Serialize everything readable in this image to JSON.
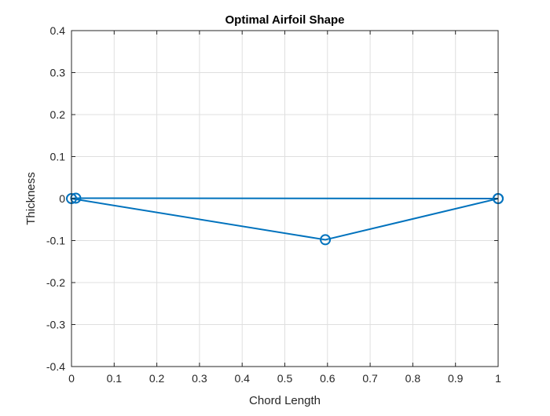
{
  "chart_data": {
    "type": "line",
    "title": "Optimal Airfoil Shape",
    "xlabel": "Chord Length",
    "ylabel": "Thickness",
    "xlim": [
      0,
      1
    ],
    "ylim": [
      -0.4,
      0.4
    ],
    "xticks": [
      0,
      0.1,
      0.2,
      0.3,
      0.4,
      0.5,
      0.6,
      0.7,
      0.8,
      0.9,
      1
    ],
    "xtick_labels": [
      "0",
      "0.1",
      "0.2",
      "0.3",
      "0.4",
      "0.5",
      "0.6",
      "0.7",
      "0.8",
      "0.9",
      "1"
    ],
    "yticks": [
      -0.4,
      -0.3,
      -0.2,
      -0.1,
      0,
      0.1,
      0.2,
      0.3,
      0.4
    ],
    "ytick_labels": [
      "-0.4",
      "-0.3",
      "-0.2",
      "-0.1",
      "0",
      "0.1",
      "0.2",
      "0.3",
      "0.4"
    ],
    "grid": true,
    "box": true,
    "series": [
      {
        "color": "#0072bd",
        "marker": "circle",
        "x": [
          1,
          0.01,
          0,
          0.595,
          1
        ],
        "y": [
          0,
          0.001,
          0,
          -0.098,
          0
        ]
      }
    ]
  }
}
